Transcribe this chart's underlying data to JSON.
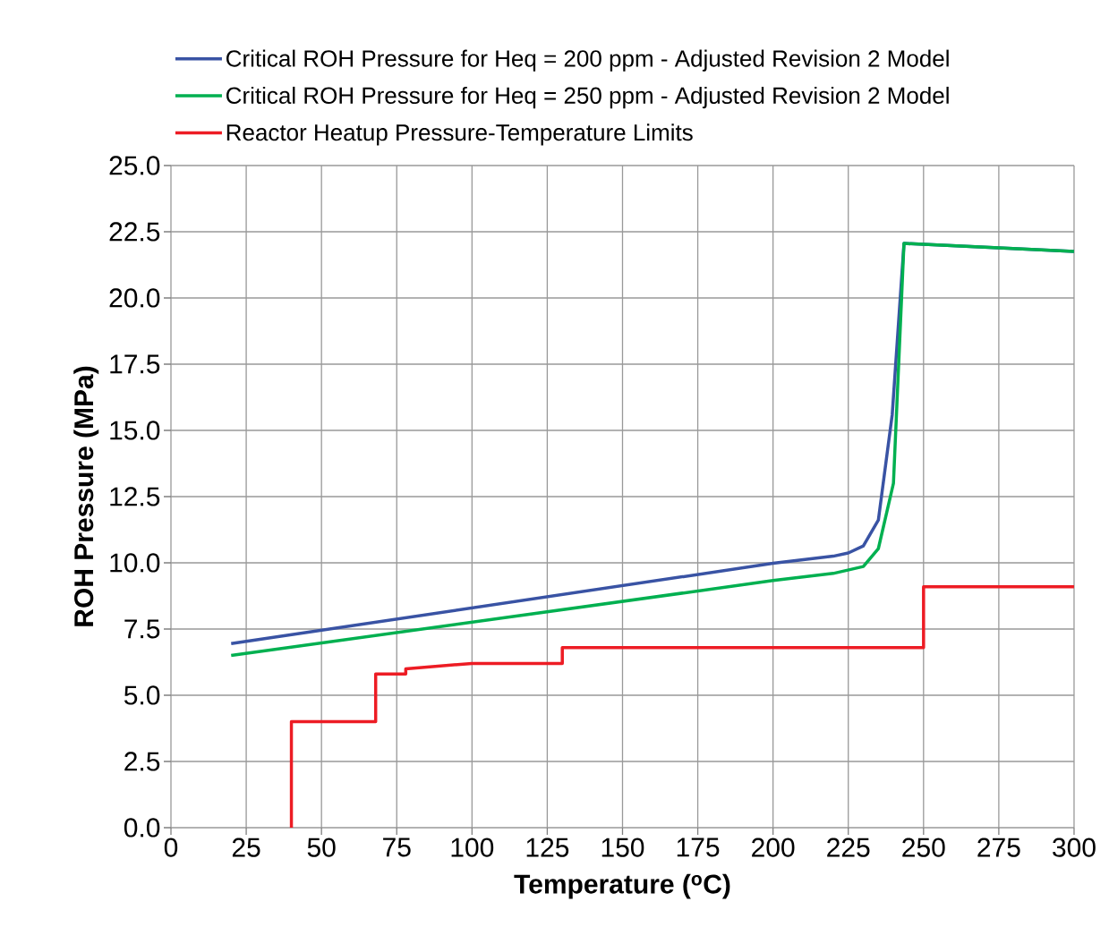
{
  "chart_data": {
    "type": "line",
    "xlabel": "Temperature ($^{o}$C)",
    "ylabel": "ROH Pressure (MPa)",
    "xlim": [
      0,
      300
    ],
    "ylim": [
      0,
      25
    ],
    "xticks": [
      0,
      25,
      50,
      75,
      100,
      125,
      150,
      175,
      200,
      225,
      250,
      275,
      300
    ],
    "yticks": [
      {
        "value": 0,
        "label": "0.0"
      },
      {
        "value": 2.5,
        "label": "2.5"
      },
      {
        "value": 5,
        "label": "5.0"
      },
      {
        "value": 7.5,
        "label": "7.5"
      },
      {
        "value": 10,
        "label": "10.0"
      },
      {
        "value": 12.5,
        "label": "12.5"
      },
      {
        "value": 15,
        "label": "15.0"
      },
      {
        "value": 17.5,
        "label": "17.5"
      },
      {
        "value": 20,
        "label": "20.0"
      },
      {
        "value": 22.5,
        "label": "22.5"
      },
      {
        "value": 25,
        "label": "25.0"
      }
    ],
    "grid": true,
    "legend": "top",
    "series": [
      {
        "name": "Critical ROH Pressure for Heq = 200 ppm - Adjusted Revision 2 Model",
        "color": "#3953a4",
        "x": [
          20,
          200,
          220,
          225,
          230,
          235,
          239.6,
          243.5,
          300
        ],
        "values": [
          6.95,
          9.98,
          10.25,
          10.37,
          10.64,
          11.62,
          15.6,
          22.06,
          21.76
        ]
      },
      {
        "name": "Critical ROH Pressure for Heq = 250 ppm - Adjusted Revision 2 Model",
        "color": "#00b050",
        "x": [
          20,
          200,
          220,
          225,
          230,
          235,
          240,
          243.5,
          300
        ],
        "values": [
          6.5,
          9.33,
          9.6,
          9.73,
          9.86,
          10.54,
          13.0,
          22.06,
          21.76
        ]
      },
      {
        "name": "Reactor Heatup Pressure-Temperature Limits",
        "color": "#ed1c24",
        "x": [
          40,
          40,
          68,
          68,
          78,
          78,
          100,
          130,
          130,
          250,
          250,
          300
        ],
        "values": [
          0,
          4,
          4,
          5.8,
          5.8,
          6.0,
          6.2,
          6.2,
          6.8,
          6.8,
          9.1,
          9.1
        ]
      }
    ]
  }
}
